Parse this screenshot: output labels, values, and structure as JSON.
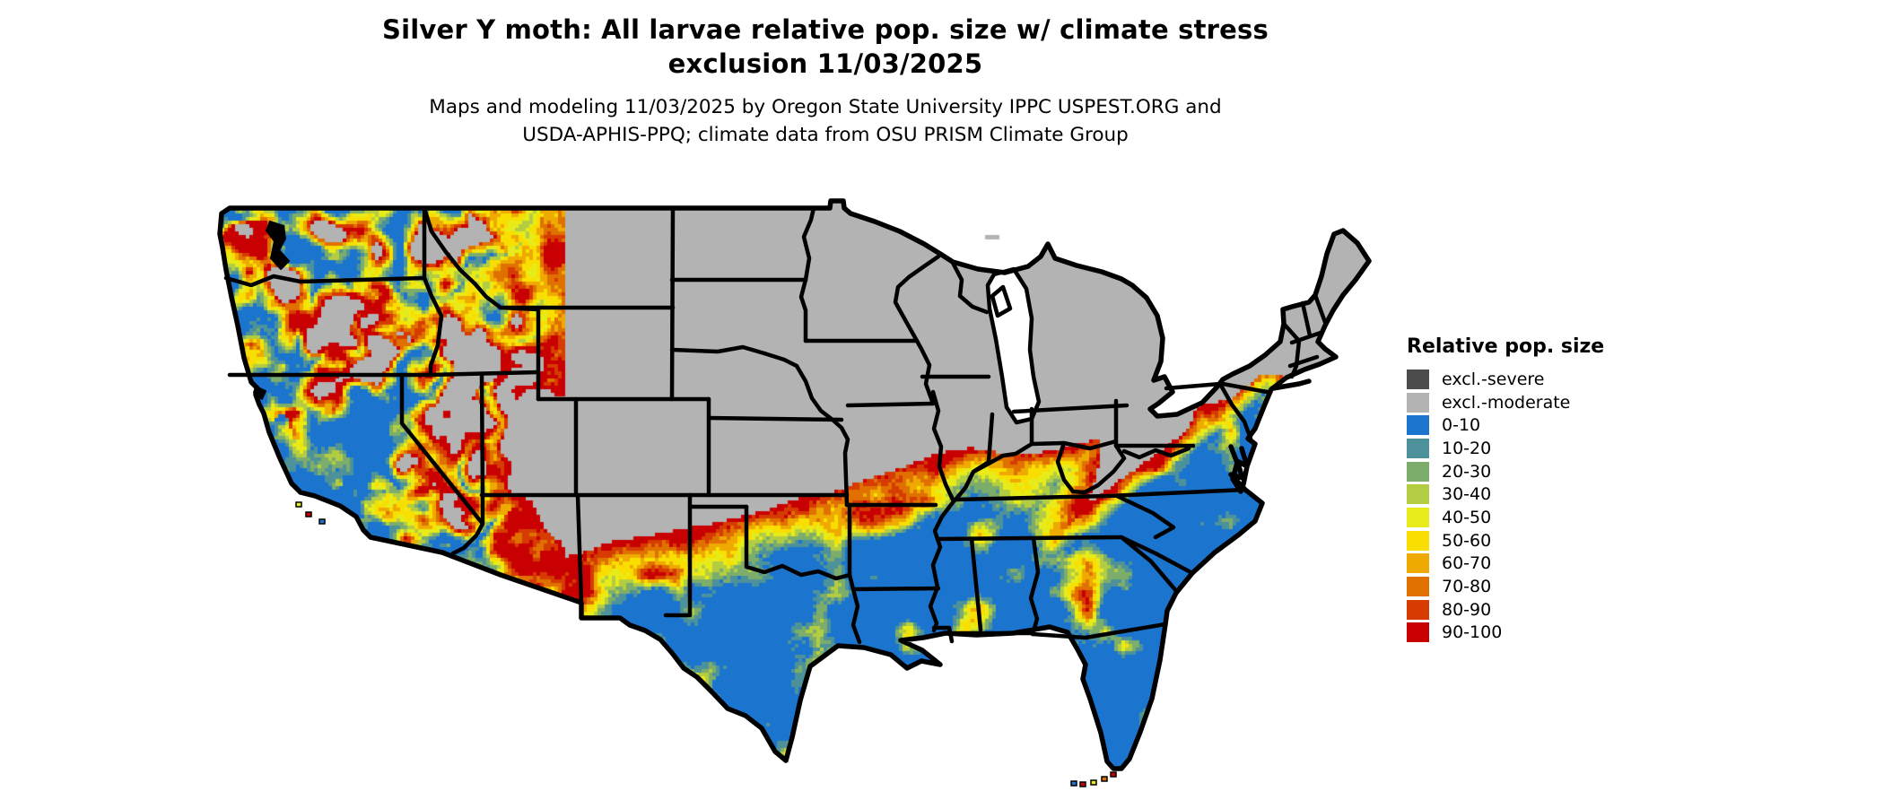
{
  "header": {
    "title_line1": "Silver Y moth: All larvae relative pop. size w/ climate stress",
    "title_line2": "exclusion 11/03/2025",
    "subtitle_line1": "Maps and modeling 11/03/2025 by Oregon State University IPPC USPEST.ORG and",
    "subtitle_line2": "USDA-APHIS-PPQ; climate data from OSU PRISM Climate Group"
  },
  "legend": {
    "title": "Relative pop. size",
    "items": [
      {
        "label": "excl.-severe",
        "color": "#4c4c4c"
      },
      {
        "label": "excl.-moderate",
        "color": "#b3b3b3"
      },
      {
        "label": "0-10",
        "color": "#1b74cd"
      },
      {
        "label": "10-20",
        "color": "#4d929b"
      },
      {
        "label": "20-30",
        "color": "#7cad6a"
      },
      {
        "label": "30-40",
        "color": "#b3cd43"
      },
      {
        "label": "40-50",
        "color": "#e7eb19"
      },
      {
        "label": "50-60",
        "color": "#f9df01"
      },
      {
        "label": "60-70",
        "color": "#eeaa01"
      },
      {
        "label": "70-80",
        "color": "#e07101"
      },
      {
        "label": "80-90",
        "color": "#d63b01"
      },
      {
        "label": "90-100",
        "color": "#c90001"
      }
    ]
  },
  "map": {
    "region": "Continental United States",
    "background": "#ffffff",
    "border_color": "#000000",
    "water_color": "#ffffff"
  }
}
